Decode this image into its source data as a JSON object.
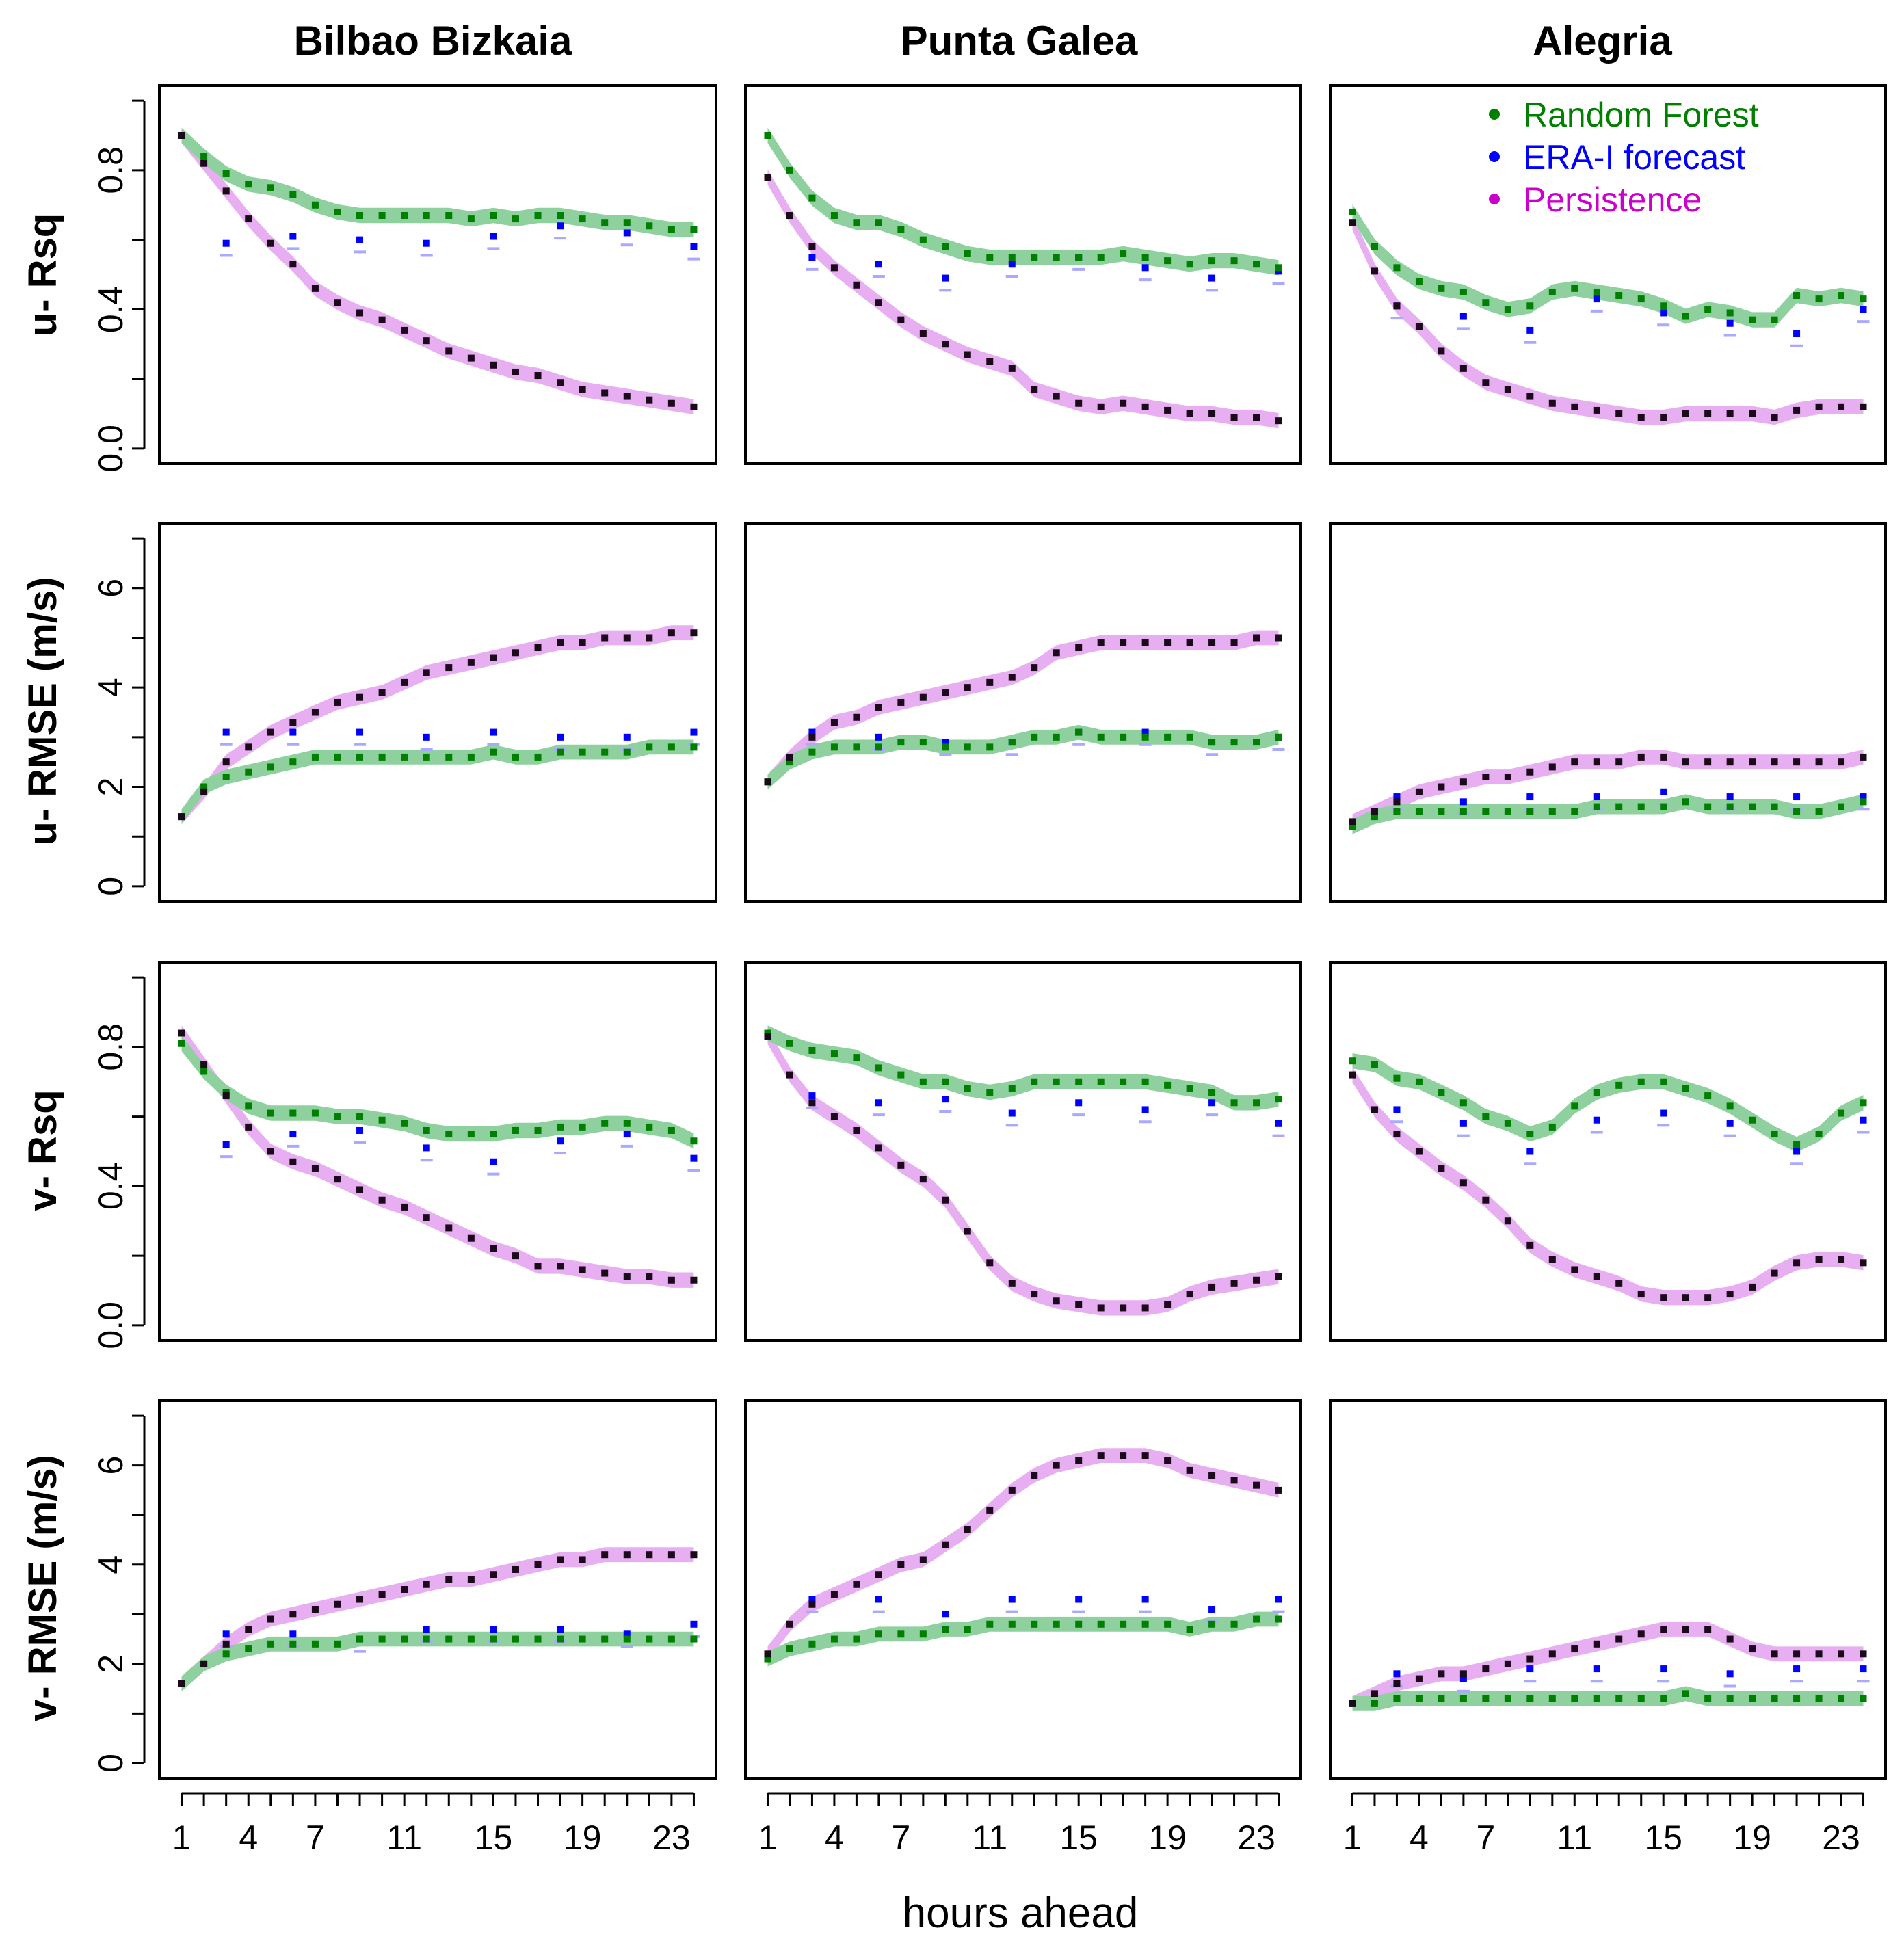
{
  "colors": {
    "rf": "#007f00",
    "rf_band": "#8fd19e",
    "era": "#0000ff",
    "era_band": "#a9a9ff",
    "persist": "#cc00cc",
    "persist_band": "#e8aef2",
    "persist_dot": "#1a0a1a",
    "axis": "#000000"
  },
  "legend": [
    {
      "key": "rf",
      "label": "Random Forest"
    },
    {
      "key": "era",
      "label": "ERA-I forecast"
    },
    {
      "key": "persist",
      "label": "Persistence"
    }
  ],
  "chart_data": {
    "type": "line",
    "xlabel": "hours ahead",
    "x_ticks": [
      "1",
      "4",
      "7",
      "11",
      "15",
      "19",
      "23"
    ],
    "x_minor_ticks": [
      1,
      2,
      3,
      4,
      5,
      6,
      7,
      8,
      9,
      10,
      11,
      12,
      13,
      14,
      15,
      16,
      17,
      18,
      19,
      20,
      21,
      22,
      23,
      24
    ],
    "xlim": [
      1,
      24
    ],
    "columns": [
      "Bilbao Bizkaia",
      "Punta Galea",
      "Alegria"
    ],
    "rows": [
      {
        "ylabel": "u- Rsq",
        "ylim": [
          0,
          1
        ],
        "yticks": [
          "0.0",
          "0.4",
          "0.8"
        ],
        "ytick_values": [
          0,
          0.4,
          0.8
        ],
        "ytick_minor": [
          0,
          0.2,
          0.4,
          0.6,
          0.8,
          1.0
        ]
      },
      {
        "ylabel": "u- RMSE (m/s)",
        "ylim": [
          0,
          7
        ],
        "yticks": [
          "0",
          "2",
          "4",
          "6"
        ],
        "ytick_values": [
          0,
          2,
          4,
          6
        ],
        "ytick_minor": [
          0,
          1,
          2,
          3,
          4,
          5,
          6,
          7
        ]
      },
      {
        "ylabel": "v- Rsq",
        "ylim": [
          0,
          1
        ],
        "yticks": [
          "0.0",
          "0.4",
          "0.8"
        ],
        "ytick_values": [
          0,
          0.4,
          0.8
        ],
        "ytick_minor": [
          0,
          0.2,
          0.4,
          0.6,
          0.8,
          1.0
        ]
      },
      {
        "ylabel": "v- RMSE (m/s)",
        "ylim": [
          0,
          7
        ],
        "yticks": [
          "0",
          "2",
          "4",
          "6"
        ],
        "ytick_values": [
          0,
          2,
          4,
          6
        ],
        "ytick_minor": [
          0,
          1,
          2,
          3,
          4,
          5,
          6,
          7
        ]
      }
    ],
    "era_hours": [
      3,
      6,
      9,
      12,
      15,
      18,
      21,
      24
    ],
    "panels": [
      [
        {
          "rf": [
            0.9,
            0.84,
            0.79,
            0.76,
            0.75,
            0.73,
            0.7,
            0.68,
            0.67,
            0.67,
            0.67,
            0.67,
            0.67,
            0.66,
            0.67,
            0.66,
            0.67,
            0.67,
            0.66,
            0.65,
            0.65,
            0.64,
            0.63,
            0.63
          ],
          "persist": [
            0.9,
            0.82,
            0.74,
            0.66,
            0.59,
            0.53,
            0.46,
            0.42,
            0.39,
            0.37,
            0.34,
            0.31,
            0.28,
            0.26,
            0.24,
            0.22,
            0.21,
            0.19,
            0.17,
            0.16,
            0.15,
            0.14,
            0.13,
            0.12
          ],
          "era": [
            0.59,
            0.61,
            0.6,
            0.59,
            0.61,
            0.64,
            0.62,
            0.58
          ]
        },
        {
          "rf": [
            0.9,
            0.8,
            0.72,
            0.67,
            0.65,
            0.65,
            0.63,
            0.6,
            0.58,
            0.56,
            0.55,
            0.55,
            0.55,
            0.55,
            0.55,
            0.55,
            0.56,
            0.55,
            0.54,
            0.53,
            0.54,
            0.54,
            0.53,
            0.52
          ],
          "persist": [
            0.78,
            0.67,
            0.58,
            0.52,
            0.47,
            0.42,
            0.37,
            0.33,
            0.3,
            0.27,
            0.25,
            0.23,
            0.17,
            0.15,
            0.13,
            0.12,
            0.13,
            0.12,
            0.11,
            0.1,
            0.1,
            0.09,
            0.09,
            0.08
          ],
          "era": [
            0.55,
            0.53,
            0.49,
            0.53,
            0.55,
            0.52,
            0.49,
            0.51
          ]
        },
        {
          "rf": [
            0.68,
            0.58,
            0.52,
            0.48,
            0.46,
            0.45,
            0.42,
            0.4,
            0.41,
            0.45,
            0.46,
            0.45,
            0.44,
            0.43,
            0.41,
            0.38,
            0.4,
            0.39,
            0.37,
            0.37,
            0.44,
            0.43,
            0.44,
            0.43
          ],
          "persist": [
            0.65,
            0.51,
            0.41,
            0.35,
            0.28,
            0.23,
            0.19,
            0.17,
            0.15,
            0.13,
            0.12,
            0.11,
            0.1,
            0.09,
            0.09,
            0.1,
            0.1,
            0.1,
            0.1,
            0.09,
            0.11,
            0.12,
            0.12,
            0.12
          ],
          "era": [
            0.41,
            0.38,
            0.34,
            0.43,
            0.39,
            0.36,
            0.33,
            0.4
          ]
        }
      ],
      [
        {
          "rf": [
            1.4,
            2.0,
            2.2,
            2.3,
            2.4,
            2.5,
            2.6,
            2.6,
            2.6,
            2.6,
            2.6,
            2.6,
            2.6,
            2.6,
            2.7,
            2.6,
            2.6,
            2.7,
            2.7,
            2.7,
            2.7,
            2.8,
            2.8,
            2.8
          ],
          "persist": [
            1.4,
            1.9,
            2.5,
            2.8,
            3.1,
            3.3,
            3.5,
            3.7,
            3.8,
            3.9,
            4.1,
            4.3,
            4.4,
            4.5,
            4.6,
            4.7,
            4.8,
            4.9,
            4.9,
            5.0,
            5.0,
            5.0,
            5.1,
            5.1
          ],
          "era": [
            3.1,
            3.1,
            3.1,
            3.0,
            3.1,
            3.0,
            3.0,
            3.1
          ]
        },
        {
          "rf": [
            2.1,
            2.5,
            2.7,
            2.8,
            2.8,
            2.8,
            2.9,
            2.9,
            2.8,
            2.8,
            2.8,
            2.9,
            3.0,
            3.0,
            3.1,
            3.0,
            3.0,
            3.0,
            3.0,
            3.0,
            2.9,
            2.9,
            2.9,
            3.0
          ],
          "persist": [
            2.1,
            2.6,
            3.0,
            3.3,
            3.4,
            3.6,
            3.7,
            3.8,
            3.9,
            4.0,
            4.1,
            4.2,
            4.4,
            4.7,
            4.8,
            4.9,
            4.9,
            4.9,
            4.9,
            4.9,
            4.9,
            4.9,
            5.0,
            5.0
          ],
          "era": [
            3.1,
            3.0,
            2.9,
            2.9,
            3.1,
            3.1,
            2.9,
            3.0
          ]
        },
        {
          "rf": [
            1.2,
            1.4,
            1.5,
            1.5,
            1.5,
            1.5,
            1.5,
            1.5,
            1.5,
            1.5,
            1.5,
            1.6,
            1.6,
            1.6,
            1.6,
            1.7,
            1.6,
            1.6,
            1.6,
            1.6,
            1.5,
            1.5,
            1.6,
            1.7
          ],
          "persist": [
            1.3,
            1.5,
            1.7,
            1.9,
            2.0,
            2.1,
            2.2,
            2.2,
            2.3,
            2.4,
            2.5,
            2.5,
            2.5,
            2.6,
            2.6,
            2.5,
            2.5,
            2.5,
            2.5,
            2.5,
            2.5,
            2.5,
            2.5,
            2.6
          ],
          "era": [
            1.8,
            1.7,
            1.8,
            1.8,
            1.9,
            1.8,
            1.8,
            1.8
          ]
        }
      ],
      [
        {
          "rf": [
            0.81,
            0.73,
            0.67,
            0.63,
            0.61,
            0.61,
            0.61,
            0.6,
            0.6,
            0.59,
            0.58,
            0.56,
            0.55,
            0.55,
            0.55,
            0.56,
            0.56,
            0.57,
            0.57,
            0.58,
            0.58,
            0.57,
            0.56,
            0.53
          ],
          "persist": [
            0.84,
            0.75,
            0.66,
            0.57,
            0.5,
            0.47,
            0.45,
            0.42,
            0.39,
            0.36,
            0.34,
            0.31,
            0.28,
            0.25,
            0.22,
            0.2,
            0.17,
            0.17,
            0.16,
            0.15,
            0.14,
            0.14,
            0.13,
            0.13
          ],
          "era": [
            0.52,
            0.55,
            0.56,
            0.51,
            0.47,
            0.53,
            0.55,
            0.48
          ]
        },
        {
          "rf": [
            0.84,
            0.81,
            0.79,
            0.78,
            0.77,
            0.74,
            0.72,
            0.7,
            0.7,
            0.68,
            0.67,
            0.68,
            0.7,
            0.7,
            0.7,
            0.7,
            0.7,
            0.7,
            0.69,
            0.68,
            0.67,
            0.64,
            0.64,
            0.65
          ],
          "persist": [
            0.83,
            0.72,
            0.64,
            0.6,
            0.56,
            0.51,
            0.46,
            0.42,
            0.36,
            0.27,
            0.18,
            0.12,
            0.09,
            0.07,
            0.06,
            0.05,
            0.05,
            0.05,
            0.06,
            0.09,
            0.11,
            0.12,
            0.13,
            0.14
          ],
          "era": [
            0.66,
            0.64,
            0.65,
            0.61,
            0.64,
            0.62,
            0.64,
            0.58
          ]
        },
        {
          "rf": [
            0.76,
            0.75,
            0.71,
            0.7,
            0.67,
            0.64,
            0.6,
            0.58,
            0.55,
            0.57,
            0.63,
            0.67,
            0.69,
            0.7,
            0.7,
            0.68,
            0.66,
            0.63,
            0.59,
            0.55,
            0.52,
            0.55,
            0.61,
            0.64
          ],
          "persist": [
            0.72,
            0.62,
            0.55,
            0.5,
            0.45,
            0.41,
            0.36,
            0.3,
            0.23,
            0.19,
            0.16,
            0.14,
            0.12,
            0.09,
            0.08,
            0.08,
            0.08,
            0.09,
            0.11,
            0.15,
            0.18,
            0.19,
            0.19,
            0.18
          ],
          "era": [
            0.62,
            0.58,
            0.5,
            0.59,
            0.61,
            0.58,
            0.5,
            0.59
          ]
        }
      ],
      [
        {
          "rf": [
            1.6,
            2.0,
            2.2,
            2.3,
            2.4,
            2.4,
            2.4,
            2.4,
            2.5,
            2.5,
            2.5,
            2.5,
            2.5,
            2.5,
            2.5,
            2.5,
            2.5,
            2.5,
            2.5,
            2.5,
            2.5,
            2.5,
            2.5,
            2.5
          ],
          "persist": [
            1.6,
            2.0,
            2.4,
            2.7,
            2.9,
            3.0,
            3.1,
            3.2,
            3.3,
            3.4,
            3.5,
            3.6,
            3.7,
            3.7,
            3.8,
            3.9,
            4.0,
            4.1,
            4.1,
            4.2,
            4.2,
            4.2,
            4.2,
            4.2
          ],
          "era": [
            2.6,
            2.6,
            2.5,
            2.7,
            2.7,
            2.7,
            2.6,
            2.8
          ]
        },
        {
          "rf": [
            2.1,
            2.3,
            2.4,
            2.5,
            2.5,
            2.6,
            2.6,
            2.6,
            2.7,
            2.7,
            2.8,
            2.8,
            2.8,
            2.8,
            2.8,
            2.8,
            2.8,
            2.8,
            2.8,
            2.7,
            2.8,
            2.8,
            2.9,
            2.9
          ],
          "persist": [
            2.2,
            2.8,
            3.2,
            3.4,
            3.6,
            3.8,
            4.0,
            4.1,
            4.4,
            4.7,
            5.1,
            5.5,
            5.8,
            6.0,
            6.1,
            6.2,
            6.2,
            6.2,
            6.1,
            5.9,
            5.8,
            5.7,
            5.6,
            5.5
          ],
          "era": [
            3.3,
            3.3,
            3.0,
            3.3,
            3.3,
            3.3,
            3.1,
            3.3
          ]
        },
        {
          "rf": [
            1.2,
            1.2,
            1.3,
            1.3,
            1.3,
            1.3,
            1.3,
            1.3,
            1.3,
            1.3,
            1.3,
            1.3,
            1.3,
            1.3,
            1.3,
            1.4,
            1.3,
            1.3,
            1.3,
            1.3,
            1.3,
            1.3,
            1.3,
            1.3
          ],
          "persist": [
            1.2,
            1.4,
            1.6,
            1.7,
            1.8,
            1.8,
            1.9,
            2.0,
            2.1,
            2.2,
            2.3,
            2.4,
            2.5,
            2.6,
            2.7,
            2.7,
            2.7,
            2.5,
            2.3,
            2.2,
            2.2,
            2.2,
            2.2,
            2.2
          ],
          "era": [
            1.8,
            1.7,
            1.9,
            1.9,
            1.9,
            1.8,
            1.9,
            1.9
          ]
        }
      ]
    ]
  }
}
